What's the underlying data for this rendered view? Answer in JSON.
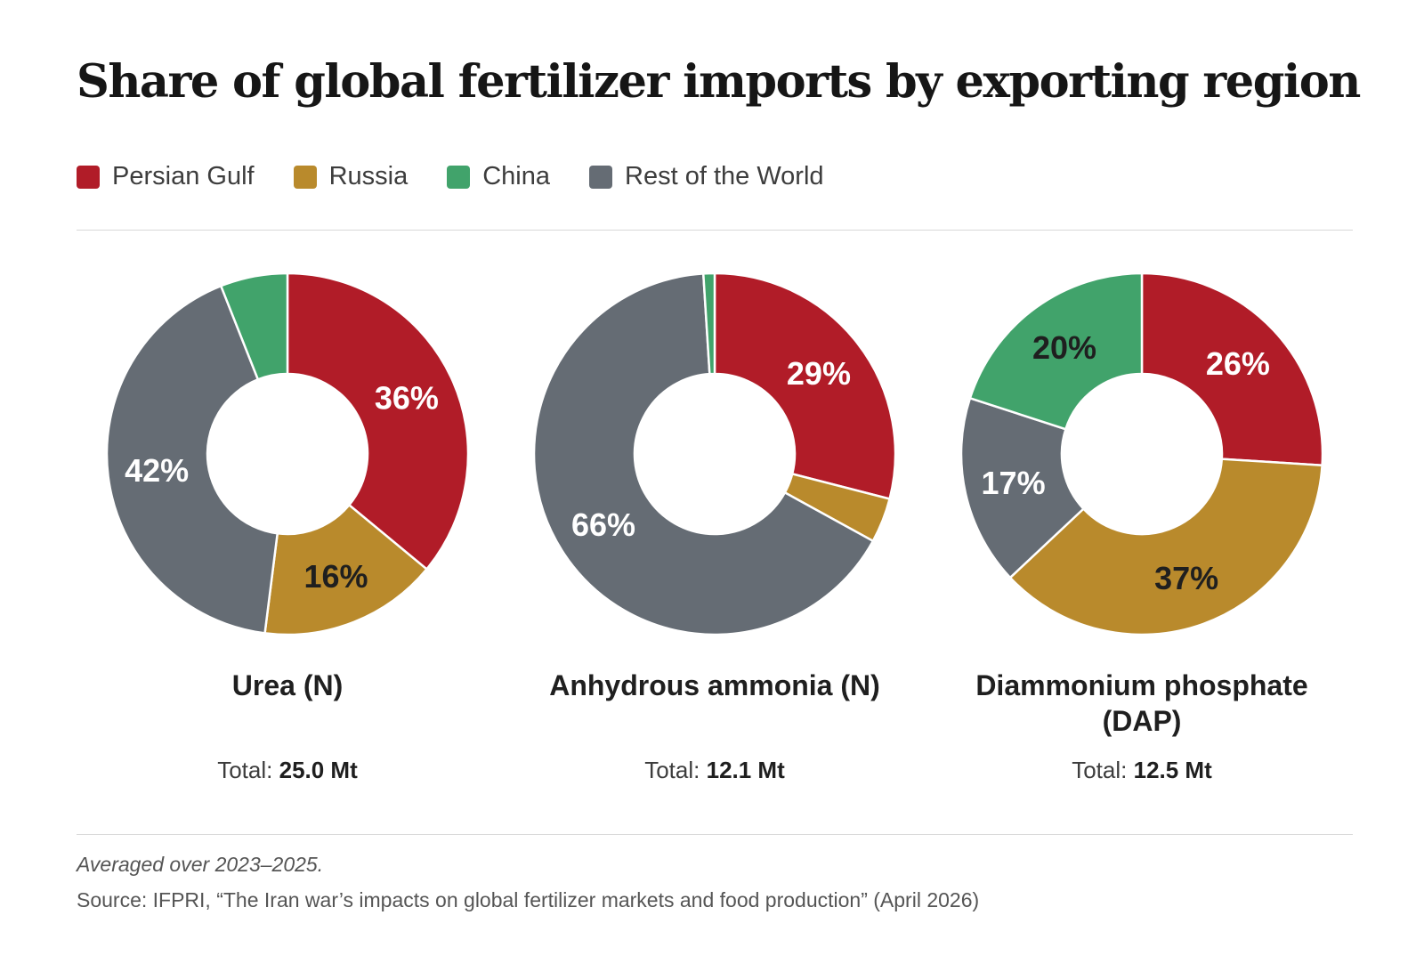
{
  "colors": {
    "Persian Gulf": "#b11c28",
    "Russia": "#b98a2c",
    "China": "#41a36b",
    "Rest of the World": "#656c74"
  },
  "chart_data": [
    {
      "type": "pie",
      "title": "Share of global fertilizer imports by exporting region",
      "subtitle": "Urea (N)",
      "total_label": "Total:",
      "total_value": "25.0 Mt",
      "slices": [
        {
          "name": "Persian Gulf",
          "value": 36,
          "label": "36%"
        },
        {
          "name": "Russia",
          "value": 16,
          "label": "16%"
        },
        {
          "name": "Rest of the World",
          "value": 42,
          "label": "42%"
        },
        {
          "name": "China",
          "value": 6,
          "label": ""
        }
      ],
      "legend_position": "top-left"
    },
    {
      "type": "pie",
      "subtitle": "Anhydrous ammonia (N)",
      "total_label": "Total:",
      "total_value": "12.1 Mt",
      "slices": [
        {
          "name": "Persian Gulf",
          "value": 29,
          "label": "29%"
        },
        {
          "name": "Russia",
          "value": 4,
          "label": ""
        },
        {
          "name": "Rest of the World",
          "value": 66,
          "label": "66%"
        },
        {
          "name": "China",
          "value": 1,
          "label": ""
        }
      ]
    },
    {
      "type": "pie",
      "subtitle": "Diammonium phosphate (DAP)",
      "total_label": "Total:",
      "total_value": "12.5 Mt",
      "slices": [
        {
          "name": "Persian Gulf",
          "value": 26,
          "label": "26%"
        },
        {
          "name": "Russia",
          "value": 37,
          "label": "37%"
        },
        {
          "name": "Rest of the World",
          "value": 17,
          "label": "17%"
        },
        {
          "name": "China",
          "value": 20,
          "label": "20%"
        }
      ]
    }
  ],
  "header": {
    "title": "Share of global fertilizer imports by exporting region"
  },
  "legend": [
    {
      "name": "Persian Gulf"
    },
    {
      "name": "Russia"
    },
    {
      "name": "China"
    },
    {
      "name": "Rest of the World"
    }
  ],
  "footer": {
    "note": "Averaged over 2023–2025.",
    "source": "Source: IFPRI, “The Iran war’s impacts on global fertilizer markets and food production” (April 2026)"
  }
}
